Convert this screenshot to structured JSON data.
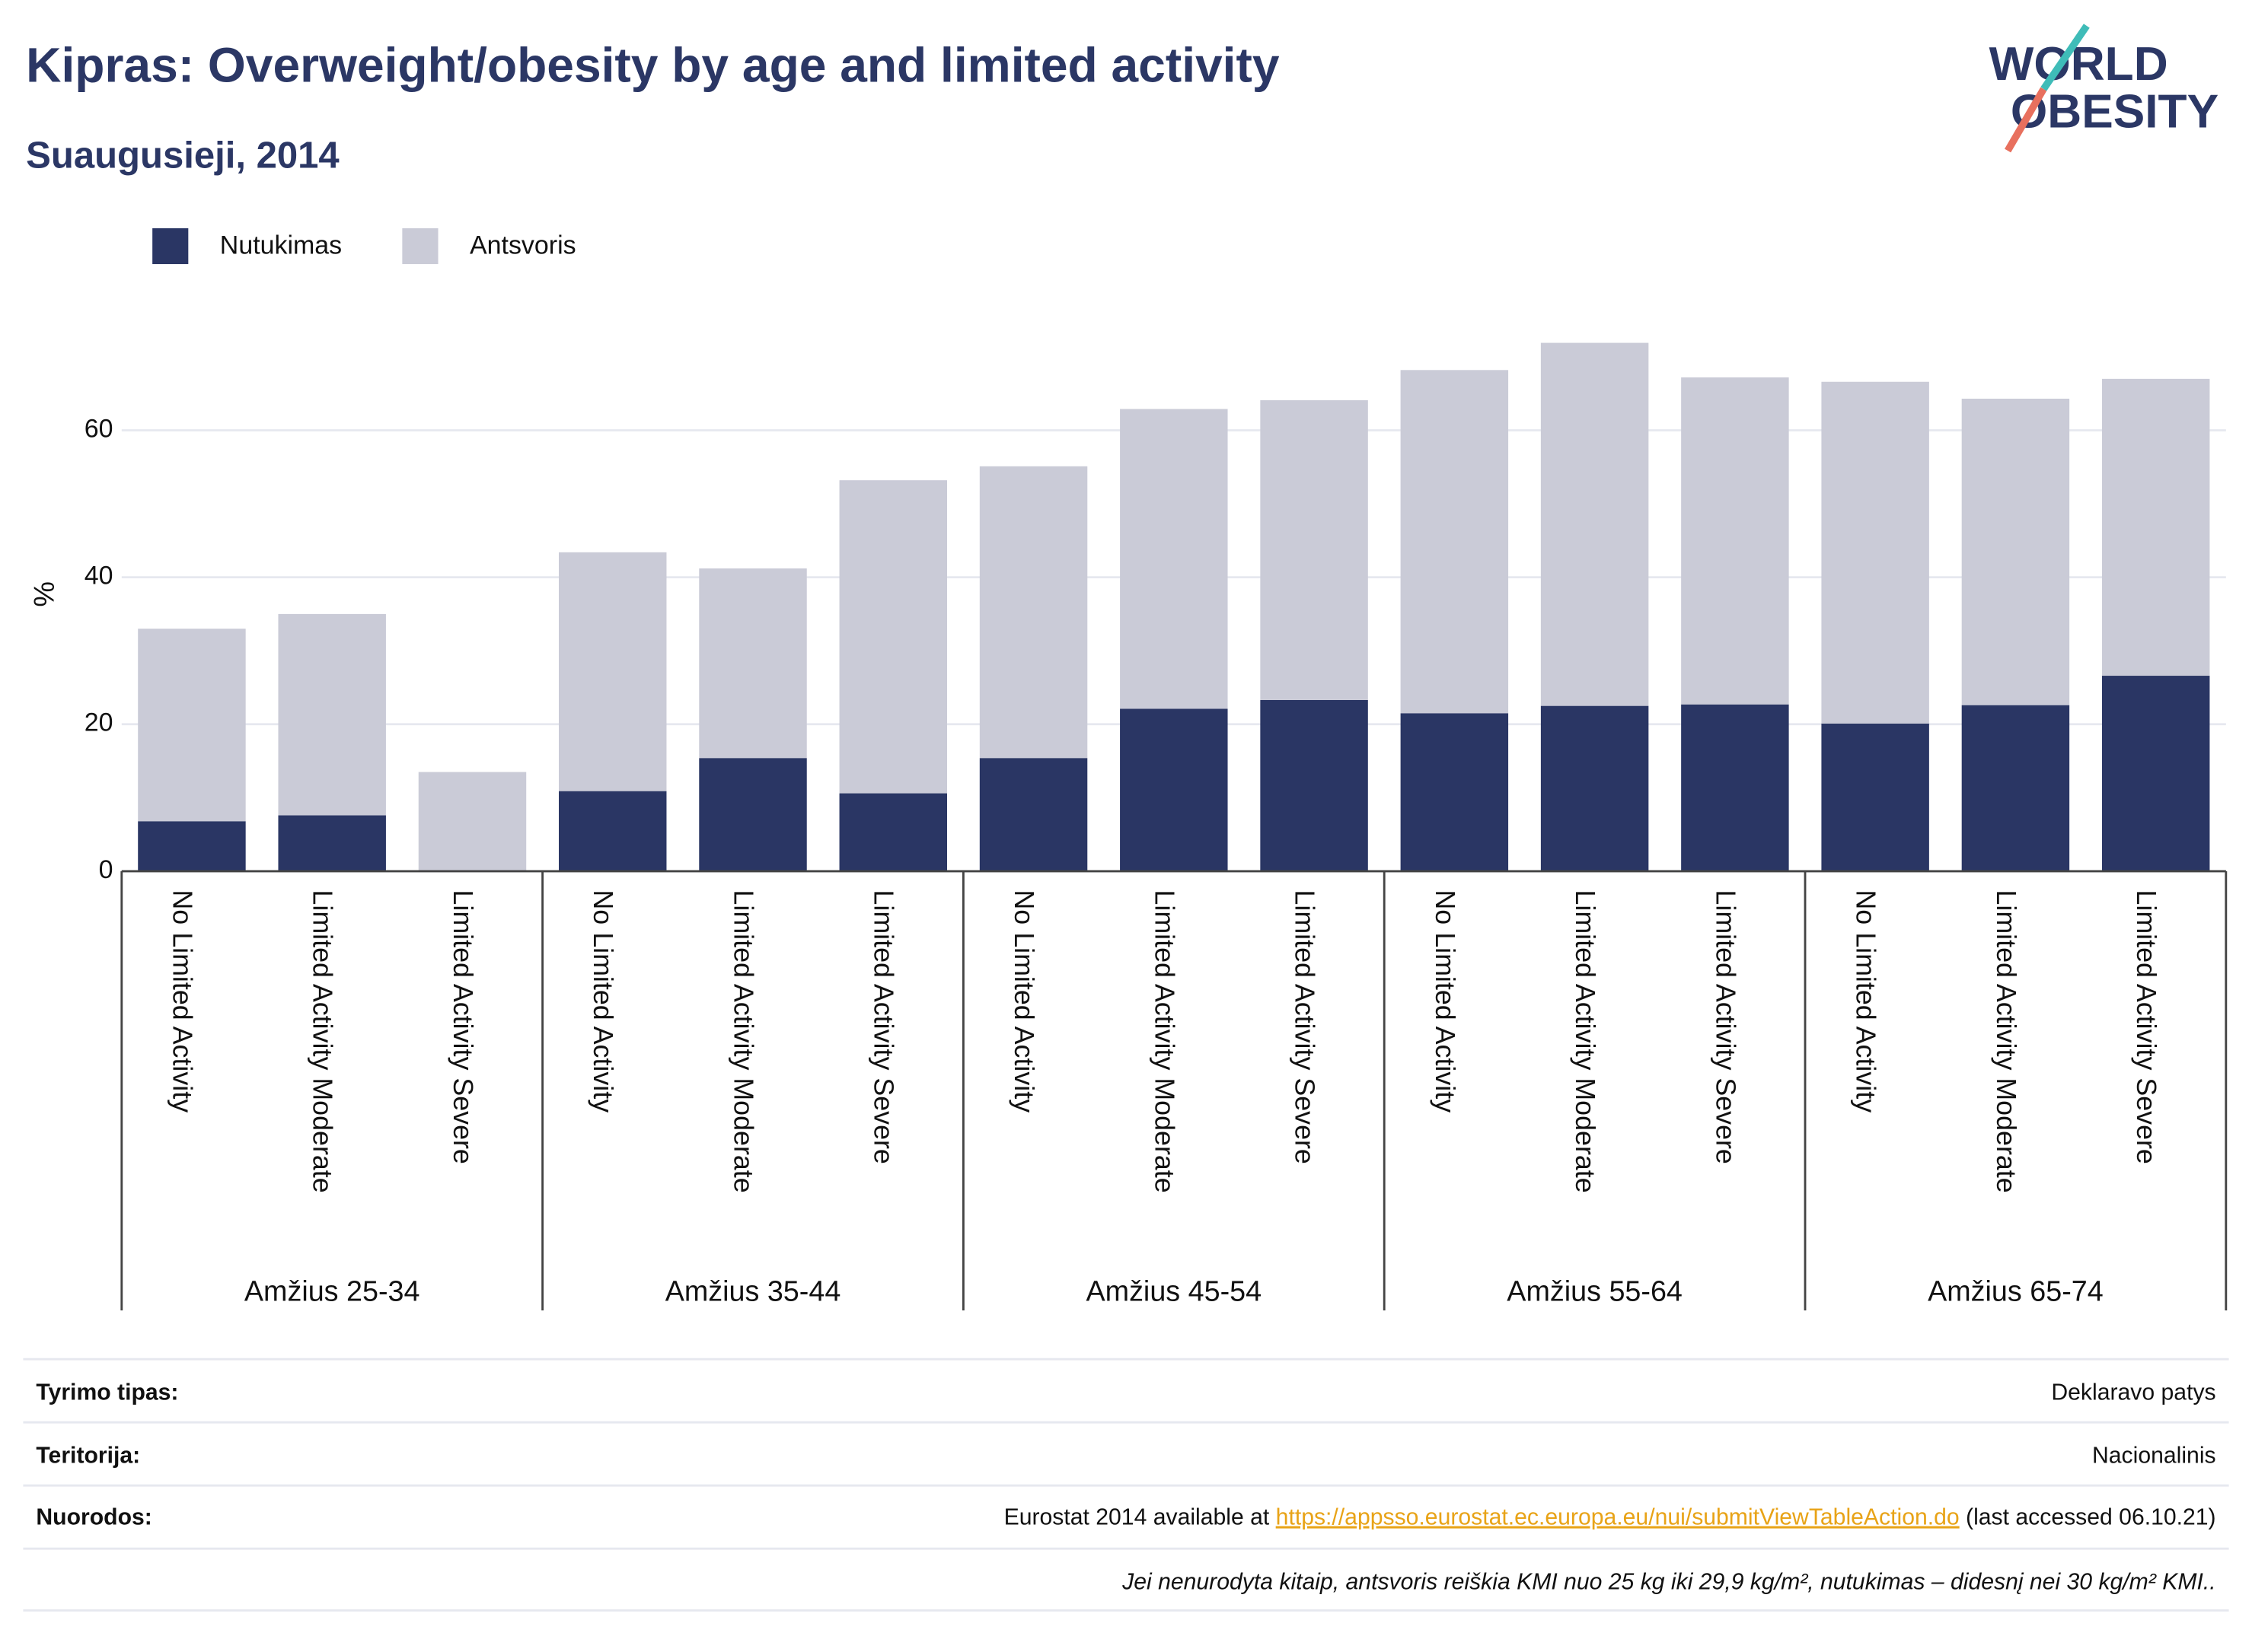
{
  "chart_data": {
    "type": "stacked_bar",
    "title": "Kipras: Overweight/obesity by age and limited activity",
    "subtitle": "Suaugusieji, 2014",
    "y_label": "%",
    "categories": [
      "No Limited Activity",
      "Limited Activity Moderate",
      "Limited Activity Severe",
      "No Limited Activity",
      "Limited Activity Moderate",
      "Limited Activity Severe",
      "No Limited Activity",
      "Limited Activity Moderate",
      "Limited Activity Severe",
      "No Limited Activity",
      "Limited Activity Moderate",
      "Limited Activity Severe",
      "No Limited Activity",
      "Limited Activity Moderate",
      "Limited Activity Severe"
    ],
    "groups": [
      "Amžius 25-34",
      "Amžius 35-44",
      "Amžius 45-54",
      "Amžius 55-64",
      "Amžius 65-74"
    ],
    "series": [
      {
        "name": "Nutukimas",
        "color": "#2a3664",
        "values": [
          6.8,
          7.6,
          0,
          10.9,
          15.4,
          10.6,
          15.4,
          22.1,
          23.3,
          21.5,
          22.5,
          22.7,
          20.1,
          22.6,
          26.6
        ]
      },
      {
        "name": "Antsvoris",
        "color": "#cacbd7",
        "values": [
          26.2,
          27.4,
          13.5,
          32.5,
          25.8,
          42.6,
          39.7,
          40.8,
          40.8,
          46.7,
          49.4,
          44.5,
          46.5,
          41.7,
          40.4
        ]
      }
    ],
    "ylim": [
      0,
      75
    ],
    "yticks": [
      0,
      20,
      40,
      60
    ],
    "grid": true,
    "legend": "top-left"
  },
  "logo": {
    "line1": "WORLD",
    "line2": "OBESITY"
  },
  "footer": {
    "rows": [
      {
        "label": "Tyrimo tipas:",
        "value": "Deklaravo patys"
      },
      {
        "label": "Teritorija:",
        "value": "Nacionalinis"
      },
      {
        "label": "Nuorodos:",
        "value_prefix": "Eurostat 2014 available at ",
        "link": "https://appsso.eurostat.ec.europa.eu/nui/submitViewTableAction.do",
        "value_suffix": " (last accessed 06.10.21)"
      }
    ],
    "note": "Jei nenurodyta kitaip, antsvoris reiškia KMI nuo 25 kg iki 29,9 kg/m², nutukimas – didesnį nei 30 kg/m² KMI.."
  }
}
